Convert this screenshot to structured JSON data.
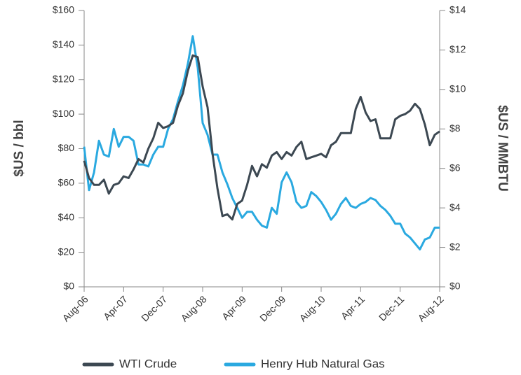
{
  "chart_data": {
    "type": "line",
    "y_label": "$US / bbl",
    "y2_label": "$US / MMBTU",
    "categories": [
      "Aug-06",
      null,
      null,
      null,
      null,
      null,
      null,
      null,
      "Apr-07",
      null,
      null,
      null,
      null,
      null,
      null,
      null,
      "Dec-07",
      null,
      null,
      null,
      null,
      null,
      null,
      null,
      "Aug-08",
      null,
      null,
      null,
      null,
      null,
      null,
      null,
      "Apr-09",
      null,
      null,
      null,
      null,
      null,
      null,
      null,
      "Dec-09",
      null,
      null,
      null,
      null,
      null,
      null,
      null,
      "Aug-10",
      null,
      null,
      null,
      null,
      null,
      null,
      null,
      "Apr-11",
      null,
      null,
      null,
      null,
      null,
      null,
      null,
      "Dec-11",
      null,
      null,
      null,
      null,
      null,
      null,
      null,
      "Aug-12"
    ],
    "series": [
      {
        "name": "WTI Crude",
        "color": "#3c4852",
        "axis": "y",
        "values": [
          73,
          63,
          59,
          59,
          62,
          54,
          59,
          60,
          64,
          63,
          68,
          74,
          72,
          80,
          86,
          95,
          92,
          93,
          95,
          105,
          112,
          125,
          134,
          133,
          116,
          104,
          77,
          57,
          41,
          42,
          39,
          48,
          50,
          59,
          70,
          64,
          71,
          69,
          76,
          78,
          74,
          78,
          76,
          81,
          84,
          74,
          75,
          76,
          77,
          75,
          82,
          84,
          89,
          89,
          89,
          103,
          110,
          101,
          96,
          97,
          86,
          86,
          86,
          97,
          99,
          100,
          102,
          106,
          103,
          94,
          82,
          88,
          90
        ]
      },
      {
        "name": "Henry Hub Natural Gas",
        "color": "#2aa9e0",
        "axis": "y2",
        "values": [
          7.1,
          4.9,
          5.8,
          7.4,
          6.7,
          6.6,
          8.0,
          7.1,
          7.6,
          7.6,
          7.4,
          6.2,
          6.2,
          6.1,
          6.7,
          7.1,
          7.1,
          8.0,
          8.5,
          9.4,
          10.2,
          11.3,
          12.7,
          11.1,
          8.3,
          7.7,
          6.7,
          6.7,
          5.8,
          5.2,
          4.5,
          4.0,
          3.5,
          3.8,
          3.8,
          3.4,
          3.1,
          3.0,
          4.0,
          3.7,
          5.3,
          5.8,
          5.3,
          4.3,
          4.0,
          4.1,
          4.8,
          4.6,
          4.3,
          3.9,
          3.4,
          3.7,
          4.2,
          4.5,
          4.1,
          4.0,
          4.2,
          4.3,
          4.5,
          4.4,
          4.1,
          3.9,
          3.6,
          3.2,
          3.2,
          2.7,
          2.5,
          2.2,
          1.9,
          2.4,
          2.5,
          3.0,
          3.0
        ]
      }
    ],
    "ylim": [
      0,
      160
    ],
    "yticks": [
      {
        "value": 0,
        "label": "$0"
      },
      {
        "value": 20,
        "label": "$20"
      },
      {
        "value": 40,
        "label": "$40"
      },
      {
        "value": 60,
        "label": "$60"
      },
      {
        "value": 80,
        "label": "$80"
      },
      {
        "value": 100,
        "label": "$100"
      },
      {
        "value": 120,
        "label": "$120"
      },
      {
        "value": 140,
        "label": "$140"
      },
      {
        "value": 160,
        "label": "$160"
      }
    ],
    "y2lim": [
      0,
      14
    ],
    "y2ticks": [
      {
        "value": 0,
        "label": "$0"
      },
      {
        "value": 2,
        "label": "$2"
      },
      {
        "value": 4,
        "label": "$4"
      },
      {
        "value": 6,
        "label": "$6"
      },
      {
        "value": 8,
        "label": "$8"
      },
      {
        "value": 10,
        "label": "$10"
      },
      {
        "value": 12,
        "label": "$12"
      },
      {
        "value": 14,
        "label": "$14"
      }
    ],
    "grid": false,
    "legend": "bottom"
  }
}
